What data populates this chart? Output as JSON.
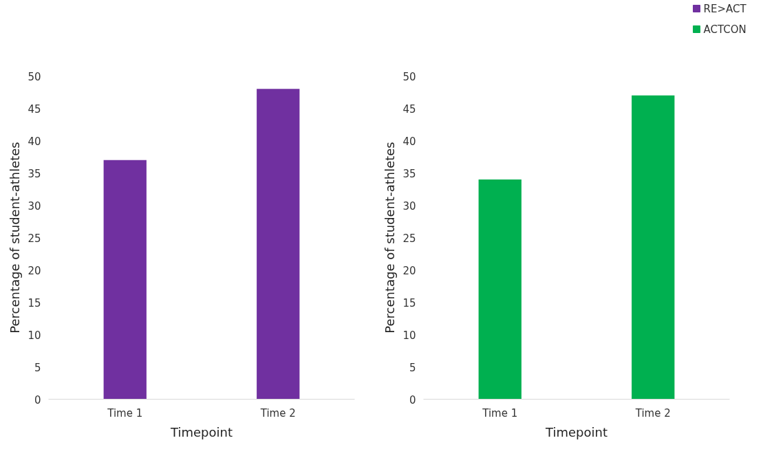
{
  "chart_data": [
    {
      "type": "bar",
      "xlabel": "Timepoint",
      "ylabel": "Percentage of student-athletes",
      "categories": [
        "Time 1",
        "Time 2"
      ],
      "series": [
        {
          "name": "RE>ACT",
          "color": "#7030a0",
          "values": [
            37,
            48
          ]
        }
      ],
      "ylim": [
        0,
        50
      ],
      "yticks": [
        0,
        5,
        10,
        15,
        20,
        25,
        30,
        35,
        40,
        45,
        50
      ],
      "grid": false,
      "legend": "top right"
    },
    {
      "type": "bar",
      "xlabel": "Timepoint",
      "ylabel": "Percentage of student-athletes",
      "categories": [
        "Time 1",
        "Time 2"
      ],
      "series": [
        {
          "name": "ACTCON",
          "color": "#00b050",
          "values": [
            34,
            47
          ]
        }
      ],
      "ylim": [
        0,
        50
      ],
      "yticks": [
        0,
        5,
        10,
        15,
        20,
        25,
        30,
        35,
        40,
        45,
        50
      ],
      "grid": false,
      "legend": "top right"
    }
  ]
}
